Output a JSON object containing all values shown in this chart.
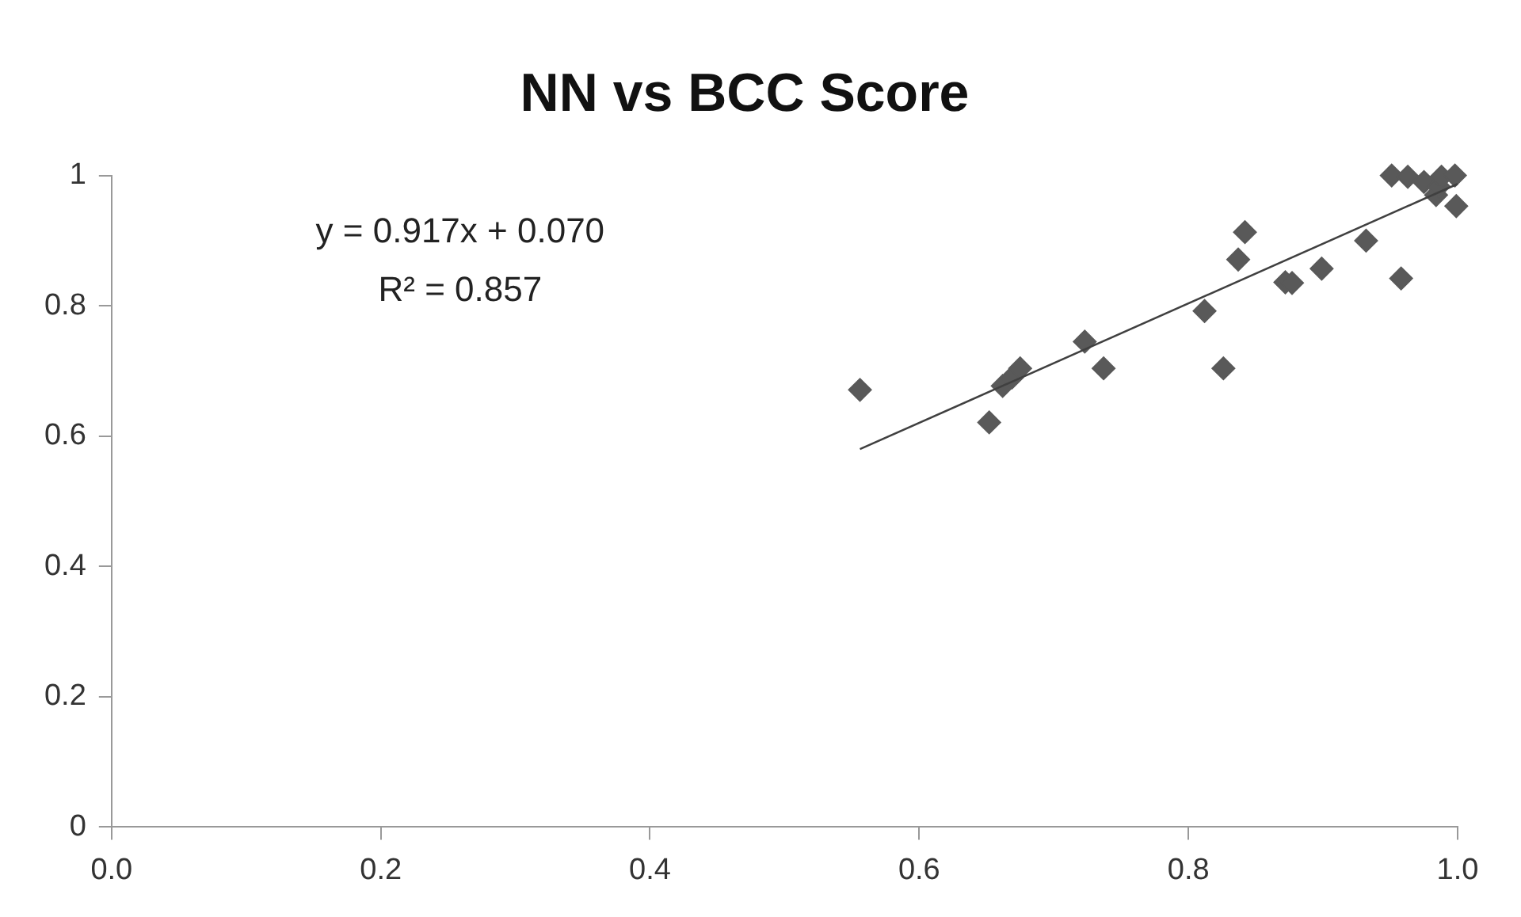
{
  "chart_data": {
    "type": "scatter",
    "title": "NN vs BCC Score",
    "annotations": [
      "y = 0.917x + 0.070",
      "R² = 0.857"
    ],
    "xlim": [
      0,
      1
    ],
    "xticks": [
      {
        "value": 0,
        "label": "0.0"
      },
      0.2,
      0.4,
      0.6,
      0.8,
      {
        "value": 1,
        "label": "1.0"
      }
    ],
    "ylim": [
      0,
      1
    ],
    "yticks": [
      0,
      0.2,
      0.4,
      0.6,
      0.8,
      1
    ],
    "grid": false,
    "legend": false,
    "marker": "diamond",
    "series": [
      {
        "type": "scatter",
        "color": "#595959",
        "x": [
          0.556,
          0.652,
          0.662,
          0.669,
          0.675,
          0.723,
          0.737,
          0.812,
          0.826,
          0.837,
          0.842,
          0.872,
          0.877,
          0.899,
          0.932,
          0.958,
          0.951,
          0.963,
          0.975,
          0.984,
          0.986,
          0.988,
          0.998,
          0.999
        ],
        "values": [
          0.671,
          0.621,
          0.677,
          0.69,
          0.704,
          0.745,
          0.704,
          0.792,
          0.704,
          0.871,
          0.913,
          0.836,
          0.835,
          0.857,
          0.9,
          0.842,
          1.0,
          0.998,
          0.99,
          0.97,
          0.983,
          0.998,
          1.0,
          0.953
        ]
      },
      {
        "type": "line",
        "color": "#404040",
        "marker": "none",
        "x": [
          0.556,
          1.0
        ],
        "values": [
          0.58,
          0.987
        ]
      }
    ]
  }
}
